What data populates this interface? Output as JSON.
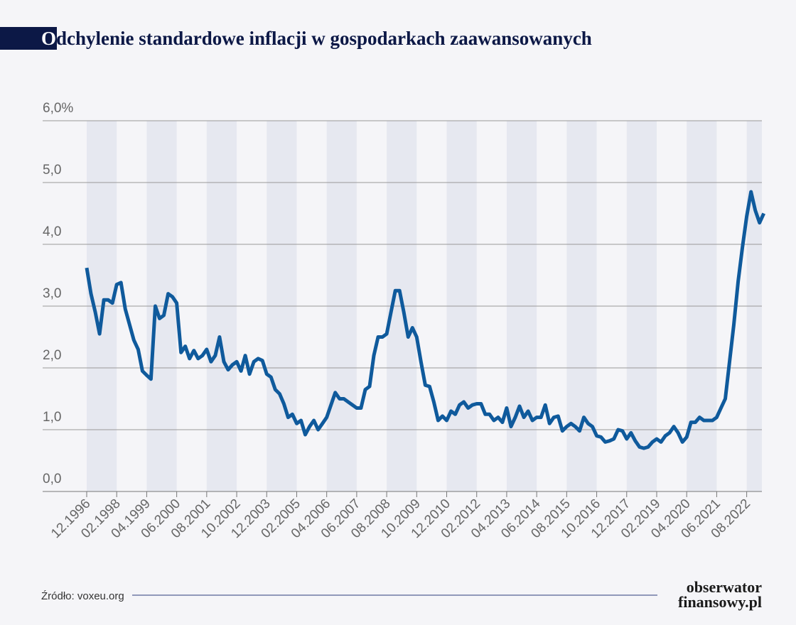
{
  "chart_data": {
    "type": "line",
    "title": "Odchylenie standardowe inflacji w gospodarkach zaawansowanych",
    "source": "Źródło: voxeu.org",
    "logo": [
      "obserwator",
      "finansowy.pl"
    ],
    "color": "#0f5a9c",
    "grid": true,
    "ylim": [
      0,
      6
    ],
    "yticks": [
      {
        "value": 0,
        "label": "0,0"
      },
      {
        "value": 1,
        "label": "1,0"
      },
      {
        "value": 2,
        "label": "2,0"
      },
      {
        "value": 3,
        "label": "3,0"
      },
      {
        "value": 4,
        "label": "4,0"
      },
      {
        "value": 5,
        "label": "5,0"
      },
      {
        "value": 6,
        "label": "6,0%"
      }
    ],
    "categories": [
      "12.1996",
      null,
      null,
      null,
      null,
      null,
      null,
      "02.1998",
      null,
      null,
      null,
      null,
      null,
      null,
      "04.1999",
      null,
      null,
      null,
      null,
      null,
      null,
      "06.2000",
      null,
      null,
      null,
      null,
      null,
      null,
      "08.2001",
      null,
      null,
      null,
      null,
      null,
      null,
      "10.2002",
      null,
      null,
      null,
      null,
      null,
      null,
      "12.2003",
      null,
      null,
      null,
      null,
      null,
      null,
      "02.2005",
      null,
      null,
      null,
      null,
      null,
      null,
      "04.2006",
      null,
      null,
      null,
      null,
      null,
      null,
      "06.2007",
      null,
      null,
      null,
      null,
      null,
      null,
      "08.2008",
      null,
      null,
      null,
      null,
      null,
      null,
      "10.2009",
      null,
      null,
      null,
      null,
      null,
      null,
      "12.2010",
      null,
      null,
      null,
      null,
      null,
      null,
      "02.2012",
      null,
      null,
      null,
      null,
      null,
      null,
      "04.2013",
      null,
      null,
      null,
      null,
      null,
      null,
      "06.2014",
      null,
      null,
      null,
      null,
      null,
      null,
      "08.2015",
      null,
      null,
      null,
      null,
      null,
      null,
      "10.2016",
      null,
      null,
      null,
      null,
      null,
      null,
      "12.2017",
      null,
      null,
      null,
      null,
      null,
      null,
      "02.2019",
      null,
      null,
      null,
      null,
      null,
      null,
      "04.2020",
      null,
      null,
      null,
      null,
      null,
      null,
      "06.2021",
      null,
      null,
      null,
      null,
      null,
      null,
      "08.2022",
      null,
      null,
      null,
      null
    ],
    "values": [
      3.62,
      3.2,
      2.9,
      2.55,
      3.1,
      3.1,
      3.05,
      3.35,
      3.38,
      2.95,
      2.7,
      2.45,
      2.3,
      1.95,
      1.88,
      1.82,
      3.0,
      2.8,
      2.85,
      3.2,
      3.15,
      3.05,
      2.25,
      2.35,
      2.15,
      2.28,
      2.15,
      2.2,
      2.3,
      2.1,
      2.2,
      2.5,
      2.1,
      1.97,
      2.05,
      2.1,
      1.95,
      2.2,
      1.9,
      2.1,
      2.15,
      2.12,
      1.9,
      1.85,
      1.65,
      1.58,
      1.42,
      1.2,
      1.25,
      1.1,
      1.15,
      0.92,
      1.05,
      1.15,
      1.0,
      1.1,
      1.2,
      1.4,
      1.6,
      1.5,
      1.5,
      1.45,
      1.4,
      1.35,
      1.35,
      1.65,
      1.7,
      2.2,
      2.5,
      2.5,
      2.55,
      2.9,
      3.25,
      3.25,
      2.9,
      2.5,
      2.65,
      2.5,
      2.1,
      1.72,
      1.7,
      1.45,
      1.15,
      1.22,
      1.15,
      1.3,
      1.25,
      1.4,
      1.45,
      1.35,
      1.4,
      1.42,
      1.42,
      1.25,
      1.25,
      1.15,
      1.2,
      1.12,
      1.35,
      1.05,
      1.2,
      1.38,
      1.2,
      1.3,
      1.15,
      1.2,
      1.2,
      1.4,
      1.1,
      1.2,
      1.22,
      0.98,
      1.05,
      1.1,
      1.05,
      0.98,
      1.2,
      1.1,
      1.05,
      0.9,
      0.88,
      0.8,
      0.82,
      0.85,
      1.0,
      0.98,
      0.85,
      0.95,
      0.82,
      0.72,
      0.7,
      0.72,
      0.8,
      0.85,
      0.8,
      0.9,
      0.95,
      1.05,
      0.95,
      0.8,
      0.88,
      1.12,
      1.12,
      1.2,
      1.15,
      1.15,
      1.15,
      1.2,
      1.35,
      1.5,
      2.1,
      2.7,
      3.4,
      3.95,
      4.45,
      4.85,
      4.55,
      4.35,
      4.5
    ]
  }
}
